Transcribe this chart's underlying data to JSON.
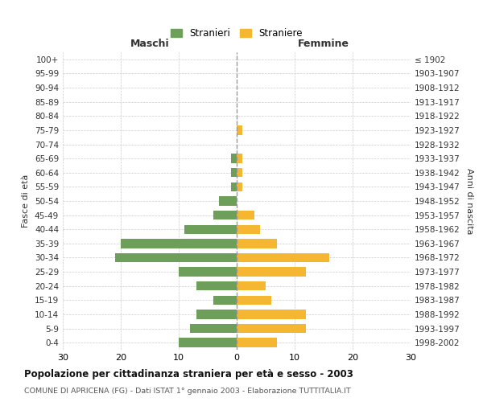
{
  "age_groups": [
    "0-4",
    "5-9",
    "10-14",
    "15-19",
    "20-24",
    "25-29",
    "30-34",
    "35-39",
    "40-44",
    "45-49",
    "50-54",
    "55-59",
    "60-64",
    "65-69",
    "70-74",
    "75-79",
    "80-84",
    "85-89",
    "90-94",
    "95-99",
    "100+"
  ],
  "birth_years": [
    "1998-2002",
    "1993-1997",
    "1988-1992",
    "1983-1987",
    "1978-1982",
    "1973-1977",
    "1968-1972",
    "1963-1967",
    "1958-1962",
    "1953-1957",
    "1948-1952",
    "1943-1947",
    "1938-1942",
    "1933-1937",
    "1928-1932",
    "1923-1927",
    "1918-1922",
    "1913-1917",
    "1908-1912",
    "1903-1907",
    "≤ 1902"
  ],
  "males": [
    10,
    8,
    7,
    4,
    7,
    10,
    21,
    20,
    9,
    4,
    3,
    1,
    1,
    1,
    0,
    0,
    0,
    0,
    0,
    0,
    0
  ],
  "females": [
    7,
    12,
    12,
    6,
    5,
    12,
    16,
    7,
    4,
    3,
    0,
    1,
    1,
    1,
    0,
    1,
    0,
    0,
    0,
    0,
    0
  ],
  "male_color": "#6d9e5a",
  "female_color": "#f5b731",
  "title": "Popolazione per cittadinanza straniera per età e sesso - 2003",
  "subtitle": "COMUNE DI APRICENA (FG) - Dati ISTAT 1° gennaio 2003 - Elaborazione TUTTITALIA.IT",
  "xlabel_left": "Maschi",
  "xlabel_right": "Femmine",
  "ylabel_left": "Fasce di età",
  "ylabel_right": "Anni di nascita",
  "legend_stranieri": "Stranieri",
  "legend_straniere": "Straniere",
  "xlim": 30,
  "background_color": "#ffffff",
  "grid_color": "#cccccc"
}
